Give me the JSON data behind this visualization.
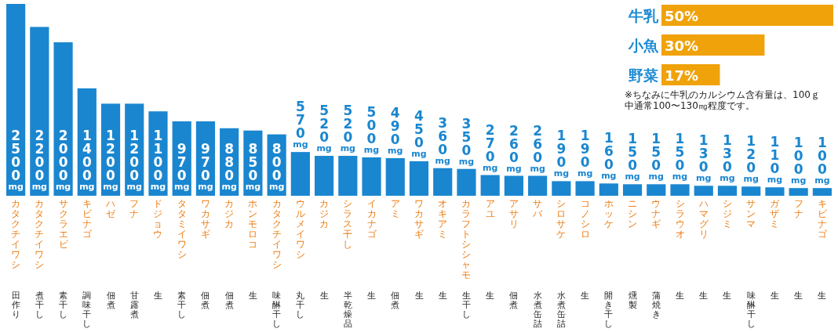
{
  "chart_data": [
    {
      "type": "bar",
      "color": "#1a86d0",
      "categories": [
        "カタクチイワシ",
        "カタクチイワシ",
        "サクラエビ",
        "キビナゴ",
        "ハゼ",
        "フナ",
        "ドジョウ",
        "タタミイワシ",
        "ワカサギ",
        "カジカ",
        "ホンモロコ",
        "カタクチイワシ",
        "ウルメイワシ",
        "カジカ",
        "シラス干し",
        "イカナゴ",
        "アミ",
        "ワカサギ",
        "オキアミ",
        "カラフトシシャモ",
        "アユ",
        "アサリ",
        "サバ",
        "シロサケ",
        "コノシロ",
        "ホッケ",
        "ニシン",
        "ウナギ",
        "シラウオ",
        "ハマグリ",
        "シジミ",
        "サンマ",
        "ガザミ",
        "フナ",
        "キビナゴ"
      ],
      "annotations": [
        "田作り",
        "煮干し",
        "素干し",
        "調味干し",
        "佃煮",
        "甘露煮",
        "生",
        "素干し",
        "佃煮",
        "佃煮",
        "生",
        "味醂干し",
        "丸干し",
        "生",
        "半乾燥品",
        "生",
        "佃煮",
        "生",
        "生",
        "生干し",
        "生",
        "佃煮",
        "水煮缶詰",
        "水煮缶詰",
        "生",
        "開き干し",
        "燻製",
        "蒲焼き",
        "生",
        "生",
        "生",
        "味醂干し",
        "生",
        "生",
        "生"
      ],
      "values": [
        2500,
        2200,
        2000,
        1400,
        1200,
        1200,
        1100,
        970,
        970,
        880,
        850,
        800,
        570,
        520,
        520,
        500,
        490,
        450,
        360,
        350,
        270,
        260,
        260,
        190,
        190,
        160,
        150,
        150,
        150,
        130,
        130,
        120,
        110,
        100,
        100
      ],
      "value_labels": [
        "2500mg",
        "2200mg",
        "2000mg",
        "1400mg",
        "1200mg",
        "1200mg",
        "1100mg",
        "970mg",
        "970mg",
        "880mg",
        "850mg",
        "800mg",
        "570mg",
        "520mg",
        "520mg",
        "500mg",
        "490mg",
        "450mg",
        "360mg",
        "350mg",
        "270mg",
        "260mg",
        "260mg",
        "190mg",
        "190mg",
        "160mg",
        "150mg",
        "150mg",
        "150mg",
        "130mg",
        "130mg",
        "120mg",
        "110mg",
        "100mg",
        "100mg"
      ]
    },
    {
      "type": "bar",
      "orientation": "horizontal",
      "color": "#f0a20a",
      "categories": [
        "牛乳",
        "小魚",
        "野菜"
      ],
      "values": [
        50,
        30,
        17
      ],
      "value_labels": [
        "50%",
        "30%",
        "17%"
      ],
      "annotations": [
        "※ちなみに牛乳のカルシウム含有量は、100ｇ中通常100〜130㎎程度です。"
      ]
    }
  ]
}
